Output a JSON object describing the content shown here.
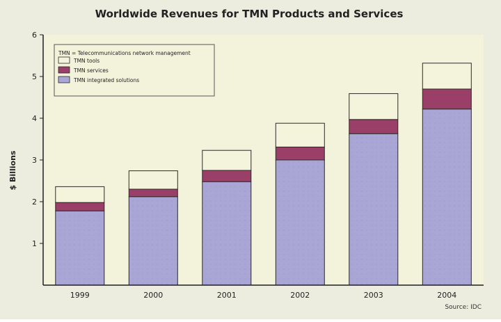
{
  "chart_data": {
    "type": "bar",
    "stacked": true,
    "title": "Worldwide Revenues for TMN Products and Services",
    "ylabel": "$ Billions",
    "xlabel": "",
    "source": "Source: IDC",
    "legend_title": "TMN = Telecommunications network management",
    "legend_placement": "top-left",
    "ylim": [
      0,
      6
    ],
    "yticks": [
      "1",
      "2",
      "3",
      "4",
      "5",
      "6"
    ],
    "grid": false,
    "categories": [
      "1999",
      "2000",
      "2001",
      "2002",
      "2003",
      "2004"
    ],
    "series": [
      {
        "name": "TMN integrated solutions",
        "color": "#a9a6d6",
        "values": [
          1.78,
          2.12,
          2.48,
          3.0,
          3.63,
          4.22
        ]
      },
      {
        "name": "TMN services",
        "color": "#9a3f67",
        "values": [
          0.2,
          0.18,
          0.27,
          0.31,
          0.34,
          0.48
        ]
      },
      {
        "name": "TMN tools",
        "color": "#f4f4dc",
        "values": [
          0.38,
          0.44,
          0.48,
          0.57,
          0.62,
          0.62
        ]
      }
    ]
  },
  "colors": {
    "plot_background": "#f3f2da",
    "panel_background": "#eceddf",
    "axis": "#1e1e1e"
  }
}
